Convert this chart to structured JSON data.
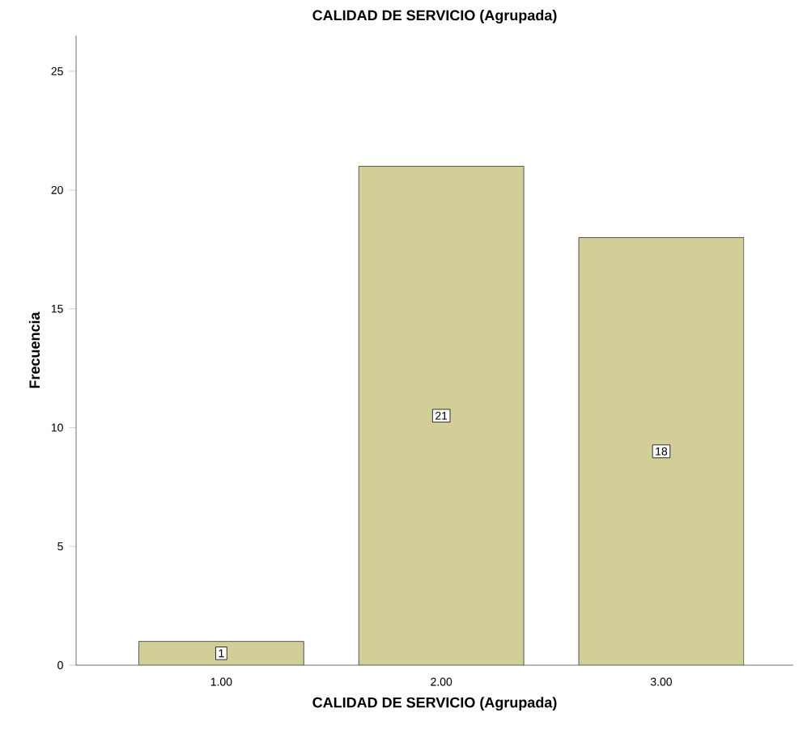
{
  "chart_data": {
    "type": "bar",
    "title": "CALIDAD DE SERVICIO (Agrupada)",
    "xlabel": "CALIDAD DE SERVICIO (Agrupada)",
    "ylabel": "Frecuencia",
    "categories": [
      "1.00",
      "2.00",
      "3.00"
    ],
    "values": [
      1,
      21,
      18
    ],
    "color": "#d3ce97",
    "ylim": [
      0,
      26.5
    ],
    "yticks": [
      0,
      5,
      10,
      15,
      20,
      25
    ],
    "data_labels": true
  }
}
